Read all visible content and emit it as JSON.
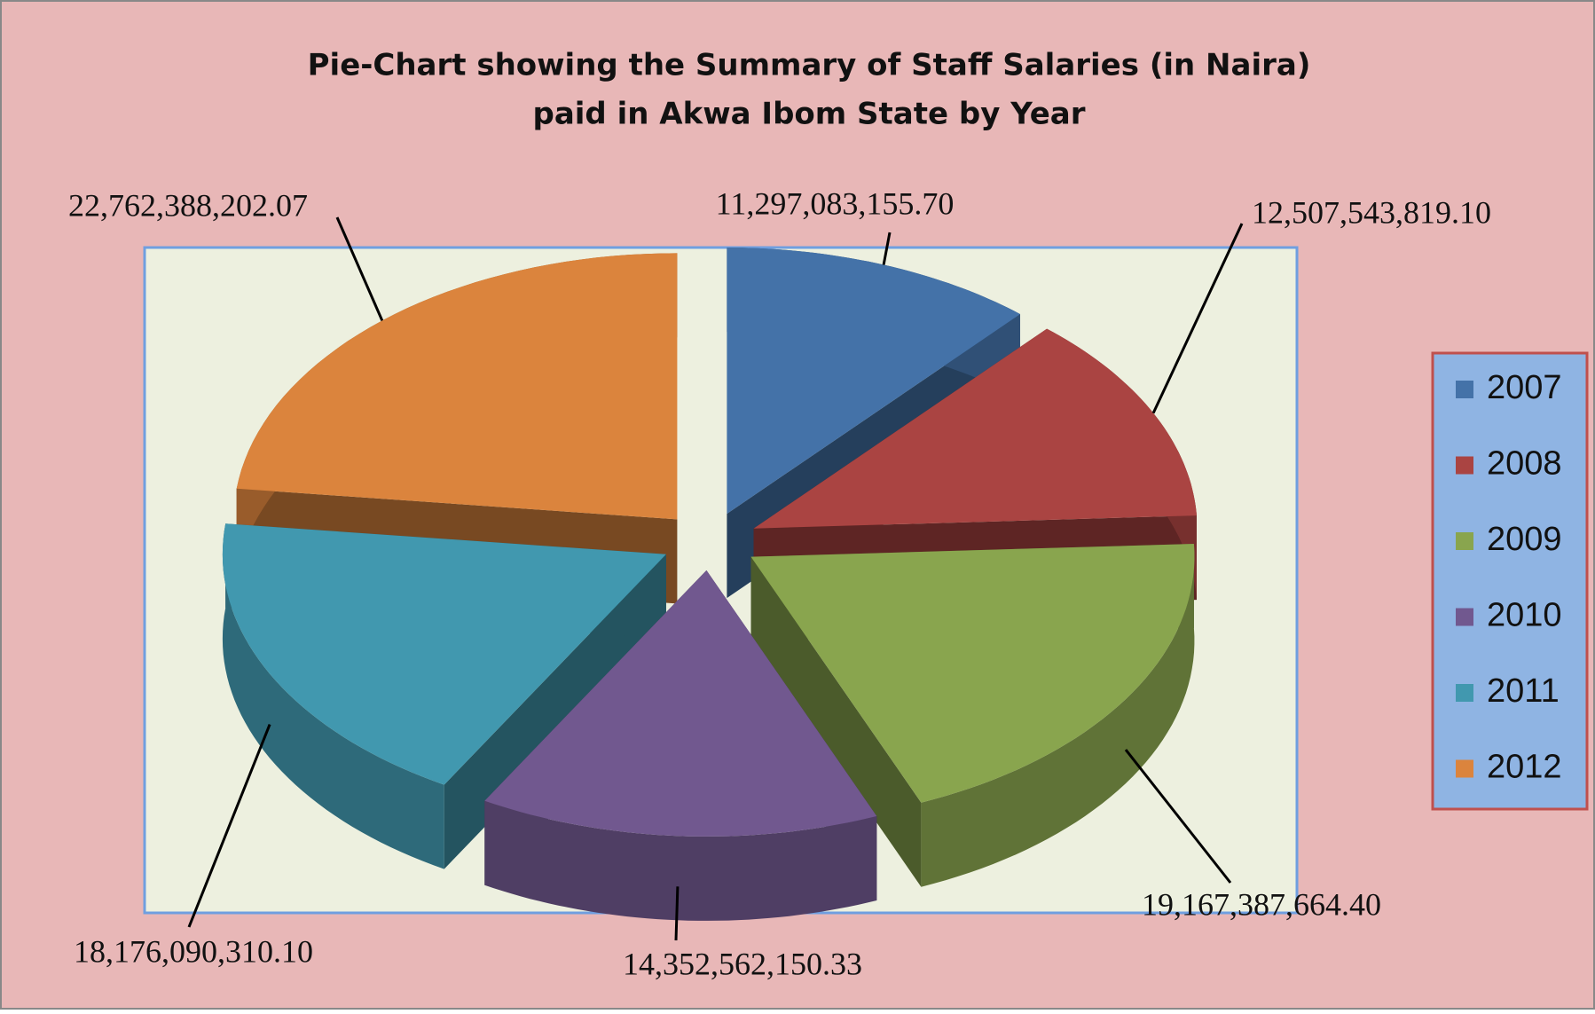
{
  "chart_data": {
    "type": "pie",
    "title": [
      "Pie-Chart showing the Summary of Staff Salaries (in Naira)",
      "paid in Akwa Ibom State by Year"
    ],
    "categories": [
      "2007",
      "2008",
      "2009",
      "2010",
      "2011",
      "2012"
    ],
    "values": [
      11297083155.7,
      12507543819.1,
      19167387664.4,
      14352562150.33,
      18176090310.1,
      22762388202.07
    ],
    "value_labels": [
      "11,297,083,155.70",
      "12,507,543,819.10",
      "19,167,387,664.40",
      "14,352,562,150.33",
      "18,176,090,310.10",
      "22,762,388,202.07"
    ],
    "colors": [
      "#4472a8",
      "#aa4442",
      "#89a54e",
      "#71588f",
      "#4198af",
      "#db843d"
    ],
    "legend": "right"
  }
}
